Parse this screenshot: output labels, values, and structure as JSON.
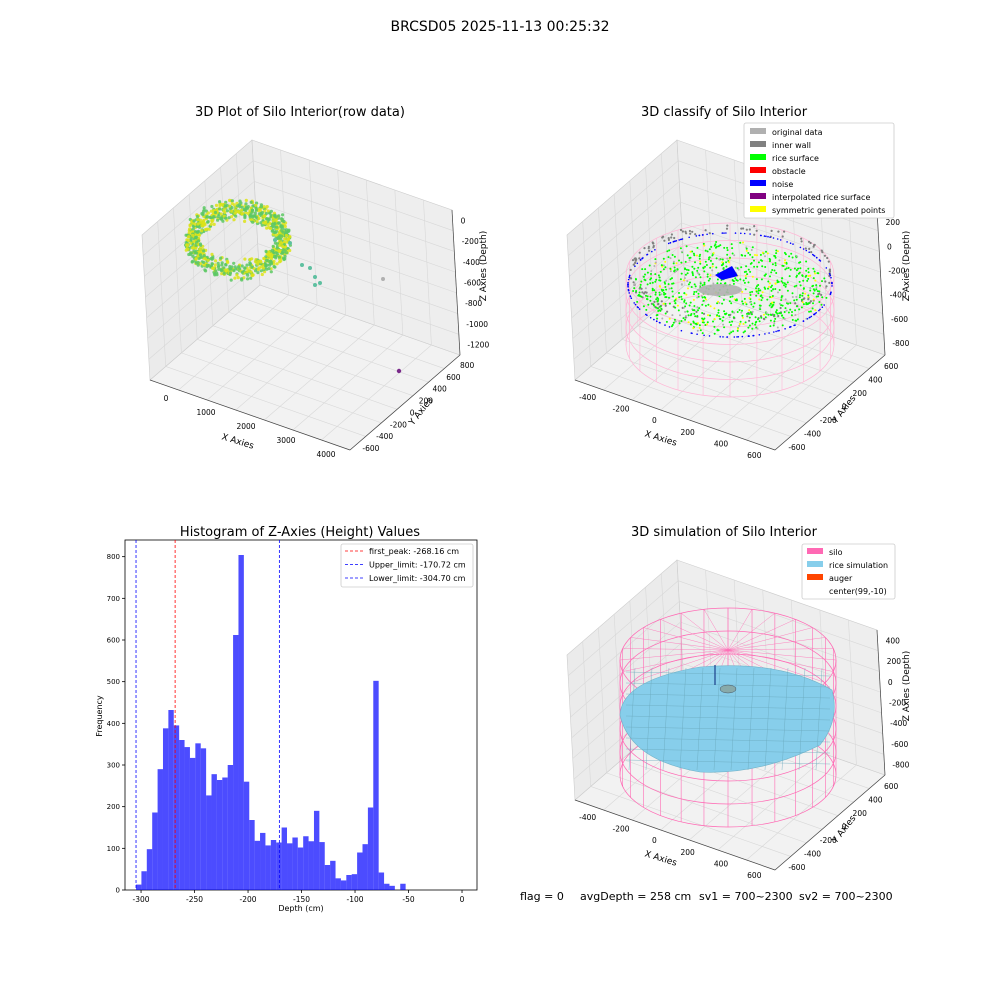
{
  "figure": {
    "suptitle": "BRCSD05 2025-11-13 00:25:32",
    "footer": {
      "flag": "flag = 0",
      "avg": "avgDepth = 258 cm",
      "sv1": "sv1 = 700~2300",
      "sv2": "sv2 = 700~2300"
    }
  },
  "panels": {
    "raw": {
      "title": "3D Plot of Silo Interior(row data)",
      "xlabel": "X Axies",
      "ylabel": "Y Axies",
      "zlabel": "Z Axies (Depth)",
      "xticks": [
        "0",
        "1000",
        "2000",
        "3000",
        "4000"
      ],
      "yticks": [
        "-600",
        "-400",
        "-200",
        "0",
        "200",
        "400",
        "600",
        "800"
      ],
      "zticks": [
        "0",
        "-200",
        "-400",
        "-600",
        "-800",
        "-1000",
        "-1200"
      ],
      "colors": {
        "green": "#5cc863",
        "yellow": "#dde318",
        "teal": "#5ec0a0",
        "purple": "#7a2a8a",
        "grey": "#b0b0b0"
      }
    },
    "classify": {
      "title": "3D classify of Silo Interior",
      "xlabel": "X Axies",
      "ylabel": "Y Axies",
      "zlabel": "Z Axies (Depth)",
      "xticks": [
        "-400",
        "-200",
        "0",
        "200",
        "400",
        "600"
      ],
      "yticks": [
        "-600",
        "-400",
        "-200",
        "0",
        "200",
        "400",
        "600"
      ],
      "zticks": [
        "200",
        "0",
        "-200",
        "-400",
        "-600",
        "-800"
      ],
      "legend": [
        {
          "label": "original data",
          "color": "#b0b0b0"
        },
        {
          "label": "inner wall",
          "color": "#808080"
        },
        {
          "label": "rice surface",
          "color": "#00ff00"
        },
        {
          "label": "obstacle",
          "color": "#ff0000"
        },
        {
          "label": "noise",
          "color": "#0000ff"
        },
        {
          "label": "interpolated rice surface",
          "color": "#800080"
        },
        {
          "label": "symmetric generated points",
          "color": "#ffff00"
        }
      ],
      "wire_color": "#ffb6d5"
    },
    "simulation": {
      "title": "3D simulation of Silo Interior",
      "xlabel": "X Axies",
      "ylabel": "Y Axies",
      "zlabel": "Z Axies (Depth)",
      "xticks": [
        "-400",
        "-200",
        "0",
        "200",
        "400",
        "600"
      ],
      "yticks": [
        "-600",
        "-400",
        "-200",
        "0",
        "200",
        "400",
        "600"
      ],
      "zticks": [
        "400",
        "200",
        "0",
        "-200",
        "-400",
        "-600",
        "-800"
      ],
      "legend": [
        {
          "label": "silo",
          "color": "#ff69b4"
        },
        {
          "label": "rice simulation",
          "color": "#87ceeb"
        },
        {
          "label": "auger",
          "color": "#ff4500"
        },
        {
          "label": "center(99,-10)",
          "color": ""
        }
      ]
    }
  },
  "chart_data": {
    "type": "bar",
    "title": "Histogram of Z-Axies (Height) Values",
    "xlabel": "Depth (cm)",
    "ylabel": "Frequency",
    "xlim": [
      -315,
      14
    ],
    "ylim": [
      0,
      840
    ],
    "bar_color": "#0000ff",
    "bin_width": 5.04,
    "bin_start": -304.7,
    "values": [
      13,
      45,
      98,
      186,
      290,
      388,
      432,
      395,
      360,
      343,
      317,
      352,
      340,
      227,
      278,
      264,
      270,
      300,
      612,
      804,
      260,
      168,
      118,
      137,
      107,
      120,
      114,
      150,
      112,
      126,
      102,
      129,
      117,
      190,
      115,
      60,
      70,
      28,
      23,
      36,
      38,
      90,
      110,
      198,
      502,
      42,
      15,
      10,
      0,
      15
    ],
    "xticks": [
      -300,
      -250,
      -200,
      -150,
      -100,
      -50,
      0
    ],
    "yticks": [
      0,
      100,
      200,
      300,
      400,
      500,
      600,
      700,
      800
    ],
    "vlines": [
      {
        "label": "first_peak: -268.16 cm",
        "x": -268.16,
        "color": "#ff0000"
      },
      {
        "label": "Upper_limit: -170.72 cm",
        "x": -170.72,
        "color": "#0000ff"
      },
      {
        "label": "Lower_limit: -304.70 cm",
        "x": -304.7,
        "color": "#0000ff"
      }
    ]
  }
}
